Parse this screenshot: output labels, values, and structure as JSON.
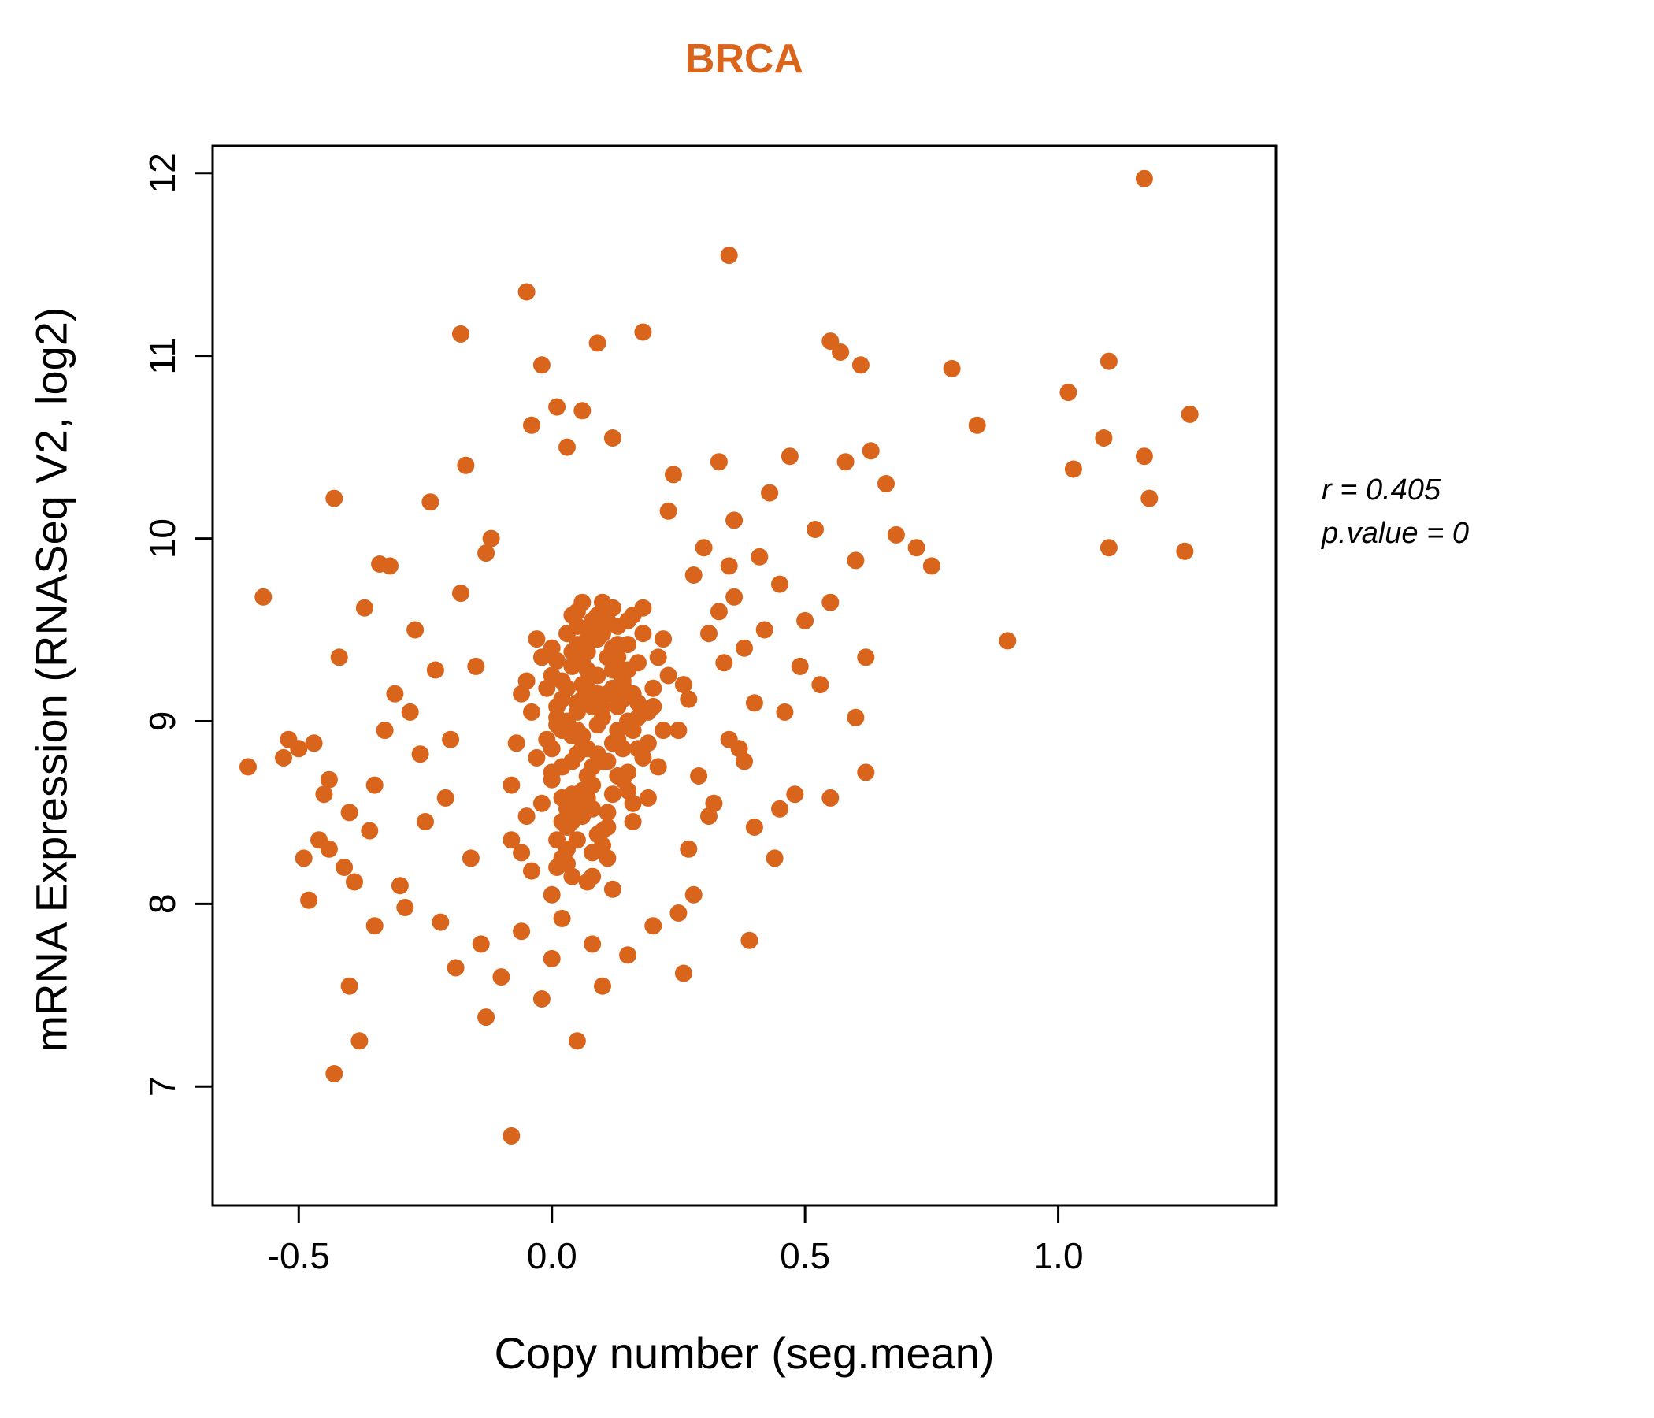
{
  "title": "BRCA",
  "colors": {
    "accent": "#D9641C",
    "point": "#D9641C",
    "axis": "#000000"
  },
  "annotation": {
    "line1": "r = 0.405",
    "line2": "p.value = 0"
  },
  "chart_data": {
    "type": "scatter",
    "title": "BRCA",
    "xlabel": "Copy number (seg.mean)",
    "ylabel": "mRNA Expression (RNASeq V2, log2)",
    "xlim": [
      -0.67,
      1.43
    ],
    "ylim": [
      6.35,
      12.15
    ],
    "xticks": [
      -0.5,
      0.0,
      0.5,
      1.0
    ],
    "xtick_labels": [
      "-0.5",
      "0.0",
      "0.5",
      "1.0"
    ],
    "yticks": [
      7,
      8,
      9,
      10,
      11,
      12
    ],
    "ytick_labels": [
      "7",
      "8",
      "9",
      "10",
      "11",
      "12"
    ],
    "grid": false,
    "legend": null,
    "annotations": [
      "r = 0.405",
      "p.value = 0"
    ],
    "point_color": "#D9641C",
    "points": [
      [
        0.02,
        8.95
      ],
      [
        0.05,
        9.1
      ],
      [
        -0.03,
        8.8
      ],
      [
        0.08,
        9.25
      ],
      [
        0.12,
        8.6
      ],
      [
        0.0,
        9.4
      ],
      [
        0.04,
        8.45
      ],
      [
        0.1,
        9.55
      ],
      [
        0.15,
        9.0
      ],
      [
        0.07,
        8.7
      ],
      [
        -0.06,
        9.15
      ],
      [
        0.03,
        8.3
      ],
      [
        0.11,
        9.35
      ],
      [
        0.06,
        8.85
      ],
      [
        0.14,
        9.2
      ],
      [
        -0.02,
        8.55
      ],
      [
        0.09,
        9.45
      ],
      [
        0.01,
        8.2
      ],
      [
        0.13,
        8.9
      ],
      [
        0.05,
        9.6
      ],
      [
        0.17,
        9.1
      ],
      [
        -0.08,
        8.65
      ],
      [
        0.04,
        9.3
      ],
      [
        0.1,
        8.4
      ],
      [
        0.07,
        9.5
      ],
      [
        0.02,
        8.75
      ],
      [
        0.16,
        8.95
      ],
      [
        0.12,
        9.4
      ],
      [
        -0.04,
        9.05
      ],
      [
        0.08,
        8.15
      ],
      [
        0.06,
        9.65
      ],
      [
        0.18,
        8.8
      ],
      [
        0.03,
        9.0
      ],
      [
        0.11,
        8.5
      ],
      [
        0.0,
        9.25
      ],
      [
        0.15,
        9.55
      ],
      [
        0.05,
        8.35
      ],
      [
        0.09,
        9.15
      ],
      [
        0.13,
        8.7
      ],
      [
        -0.01,
        8.9
      ],
      [
        0.07,
        9.38
      ],
      [
        0.19,
        9.05
      ],
      [
        0.04,
        8.6
      ],
      [
        0.1,
        9.48
      ],
      [
        0.02,
        8.25
      ],
      [
        0.14,
        8.85
      ],
      [
        0.06,
        9.2
      ],
      [
        0.12,
        9.62
      ],
      [
        -0.05,
        8.48
      ],
      [
        0.08,
        9.08
      ],
      [
        0.16,
        8.55
      ],
      [
        0.01,
        9.33
      ],
      [
        0.11,
        8.78
      ],
      [
        0.05,
        9.52
      ],
      [
        0.2,
        9.18
      ],
      [
        0.03,
        8.42
      ],
      [
        0.09,
        8.98
      ],
      [
        0.15,
        9.28
      ],
      [
        -0.07,
        8.88
      ],
      [
        0.07,
        8.12
      ],
      [
        0.13,
        9.42
      ],
      [
        0.0,
        8.68
      ],
      [
        0.17,
        9.02
      ],
      [
        0.04,
        9.58
      ],
      [
        0.1,
        8.32
      ],
      [
        0.06,
        8.92
      ],
      [
        0.21,
        9.35
      ],
      [
        0.02,
        9.12
      ],
      [
        0.08,
        8.52
      ],
      [
        0.14,
        9.22
      ],
      [
        -0.03,
        9.45
      ],
      [
        0.12,
        8.08
      ],
      [
        0.05,
        8.82
      ],
      [
        0.18,
        9.48
      ],
      [
        0.01,
        9.02
      ],
      [
        0.09,
        8.38
      ],
      [
        0.15,
        8.72
      ],
      [
        0.07,
        9.28
      ],
      [
        0.22,
        8.95
      ],
      [
        0.03,
        9.18
      ],
      [
        0.11,
        9.55
      ],
      [
        -0.06,
        8.28
      ],
      [
        0.06,
        8.62
      ],
      [
        0.13,
        9.08
      ],
      [
        0.0,
        8.85
      ],
      [
        0.16,
        8.45
      ],
      [
        0.04,
        9.38
      ],
      [
        0.1,
        9.65
      ],
      [
        0.08,
        8.75
      ],
      [
        0.19,
        8.58
      ],
      [
        0.02,
        9.22
      ],
      [
        0.12,
        8.88
      ],
      [
        -0.04,
        8.18
      ],
      [
        0.07,
        9.45
      ],
      [
        0.14,
        9.12
      ],
      [
        0.05,
        8.55
      ],
      [
        0.23,
        9.25
      ],
      [
        0.01,
        8.98
      ],
      [
        0.09,
        9.58
      ],
      [
        0.17,
        8.85
      ],
      [
        0.03,
        8.22
      ],
      [
        0.11,
        9.15
      ],
      [
        0.06,
        8.48
      ],
      [
        0.13,
        9.52
      ],
      [
        -0.02,
        9.35
      ],
      [
        0.08,
        8.65
      ],
      [
        0.2,
        9.08
      ],
      [
        0.04,
        8.92
      ],
      [
        0.15,
        9.42
      ],
      [
        0.0,
        8.05
      ],
      [
        0.1,
        8.78
      ],
      [
        0.07,
        9.18
      ],
      [
        0.18,
        9.62
      ],
      [
        0.02,
        8.58
      ],
      [
        0.12,
        9.28
      ],
      [
        0.05,
        9.05
      ],
      [
        -0.08,
        8.35
      ],
      [
        0.09,
        8.82
      ],
      [
        0.16,
        9.15
      ],
      [
        0.03,
        9.48
      ],
      [
        0.11,
        8.25
      ],
      [
        0.06,
        9.32
      ],
      [
        0.14,
        8.68
      ],
      [
        0.01,
        9.08
      ],
      [
        0.21,
        8.75
      ],
      [
        0.08,
        9.55
      ],
      [
        0.04,
        8.15
      ],
      [
        0.13,
        8.95
      ],
      [
        -0.05,
        9.22
      ],
      [
        0.07,
        8.85
      ],
      [
        0.17,
        9.32
      ],
      [
        0.1,
        9.02
      ],
      [
        0.02,
        8.45
      ],
      [
        0.15,
        8.62
      ],
      [
        0.05,
        9.42
      ],
      [
        0.12,
        9.18
      ],
      [
        0.0,
        8.72
      ],
      [
        0.09,
        9.25
      ],
      [
        0.19,
        8.88
      ],
      [
        0.03,
        8.52
      ],
      [
        0.06,
        9.12
      ],
      [
        0.11,
        8.42
      ],
      [
        0.16,
        9.58
      ],
      [
        -0.01,
        9.18
      ],
      [
        0.08,
        8.28
      ],
      [
        0.13,
        9.35
      ],
      [
        0.04,
        8.78
      ],
      [
        0.1,
        9.08
      ],
      [
        0.07,
        8.58
      ],
      [
        0.22,
        9.45
      ],
      [
        0.01,
        8.35
      ],
      [
        0.14,
        9.22
      ],
      [
        0.05,
        8.95
      ],
      [
        0.02,
        7.92
      ],
      [
        0.2,
        7.88
      ],
      [
        0.1,
        7.55
      ],
      [
        0.15,
        7.72
      ],
      [
        -0.06,
        7.85
      ],
      [
        0.08,
        7.78
      ],
      [
        0.0,
        7.7
      ],
      [
        -0.1,
        7.6
      ],
      [
        -0.02,
        7.48
      ],
      [
        -0.13,
        7.38
      ],
      [
        0.05,
        7.25
      ],
      [
        -0.08,
        6.73
      ],
      [
        -0.2,
        8.9
      ],
      [
        -0.25,
        8.45
      ],
      [
        -0.15,
        9.3
      ],
      [
        -0.3,
        8.1
      ],
      [
        -0.18,
        9.7
      ],
      [
        -0.22,
        7.9
      ],
      [
        -0.28,
        9.05
      ],
      [
        -0.12,
        10.0
      ],
      [
        -0.35,
        8.65
      ],
      [
        -0.16,
        8.25
      ],
      [
        0.28,
        9.8
      ],
      [
        0.32,
        8.55
      ],
      [
        0.26,
        9.2
      ],
      [
        0.35,
        8.9
      ],
      [
        0.3,
        9.95
      ],
      [
        0.38,
        9.4
      ],
      [
        0.27,
        8.3
      ],
      [
        0.33,
        9.6
      ],
      [
        0.4,
        9.1
      ],
      [
        0.29,
        8.7
      ],
      [
        0.36,
        10.1
      ],
      [
        0.42,
        9.5
      ],
      [
        0.25,
        7.95
      ],
      [
        0.31,
        8.48
      ],
      [
        0.45,
        9.75
      ],
      [
        0.37,
        8.85
      ],
      [
        0.43,
        10.25
      ],
      [
        0.34,
        9.32
      ],
      [
        0.48,
        8.6
      ],
      [
        0.41,
        9.9
      ],
      [
        -0.24,
        10.2
      ],
      [
        -0.19,
        7.65
      ],
      [
        0.24,
        10.35
      ],
      [
        0.39,
        7.8
      ],
      [
        -0.27,
        9.5
      ],
      [
        -0.14,
        7.78
      ],
      [
        0.46,
        9.05
      ],
      [
        0.23,
        10.15
      ],
      [
        -0.32,
        9.85
      ],
      [
        -0.21,
        8.58
      ],
      [
        0.44,
        8.25
      ],
      [
        0.26,
        7.62
      ],
      [
        -0.17,
        10.4
      ],
      [
        0.47,
        10.45
      ],
      [
        0.36,
        9.68
      ],
      [
        -0.29,
        7.98
      ],
      [
        0.25,
        8.95
      ],
      [
        0.33,
        10.42
      ],
      [
        -0.23,
        9.28
      ],
      [
        0.49,
        9.3
      ],
      [
        0.28,
        8.05
      ],
      [
        -0.26,
        8.82
      ],
      [
        0.31,
        9.48
      ],
      [
        0.4,
        8.42
      ],
      [
        -0.13,
        9.92
      ],
      [
        0.27,
        9.12
      ],
      [
        0.38,
        8.78
      ],
      [
        -0.31,
        9.15
      ],
      [
        0.45,
        8.52
      ],
      [
        0.35,
        9.85
      ],
      [
        -0.57,
        9.68
      ],
      [
        -0.6,
        8.75
      ],
      [
        -0.52,
        8.9
      ],
      [
        -0.5,
        8.85
      ],
      [
        -0.48,
        8.02
      ],
      [
        -0.45,
        8.6
      ],
      [
        -0.43,
        10.22
      ],
      [
        -0.43,
        7.07
      ],
      [
        -0.46,
        8.35
      ],
      [
        -0.41,
        8.2
      ],
      [
        -0.44,
        8.68
      ],
      [
        -0.4,
        7.55
      ],
      [
        -0.39,
        8.12
      ],
      [
        -0.47,
        8.88
      ],
      [
        -0.42,
        9.35
      ],
      [
        -0.38,
        7.25
      ],
      [
        -0.36,
        8.4
      ],
      [
        -0.34,
        9.86
      ],
      [
        -0.37,
        9.62
      ],
      [
        -0.33,
        8.95
      ],
      [
        -0.49,
        8.25
      ],
      [
        -0.53,
        8.8
      ],
      [
        -0.35,
        7.88
      ],
      [
        -0.44,
        8.3
      ],
      [
        -0.4,
        8.5
      ],
      [
        1.17,
        11.97
      ],
      [
        0.35,
        11.55
      ],
      [
        -0.05,
        11.35
      ],
      [
        -0.18,
        11.12
      ],
      [
        0.18,
        11.13
      ],
      [
        0.09,
        11.07
      ],
      [
        -0.02,
        10.95
      ],
      [
        0.01,
        10.72
      ],
      [
        0.06,
        10.7
      ],
      [
        -0.04,
        10.62
      ],
      [
        0.03,
        10.5
      ],
      [
        0.12,
        10.55
      ],
      [
        0.55,
        11.08
      ],
      [
        0.57,
        11.02
      ],
      [
        0.61,
        10.95
      ],
      [
        0.79,
        10.93
      ],
      [
        0.84,
        10.62
      ],
      [
        1.02,
        10.8
      ],
      [
        1.1,
        10.97
      ],
      [
        1.26,
        10.68
      ],
      [
        1.09,
        10.55
      ],
      [
        1.17,
        10.45
      ],
      [
        1.03,
        10.38
      ],
      [
        1.18,
        10.22
      ],
      [
        1.25,
        9.93
      ],
      [
        1.1,
        9.95
      ],
      [
        0.9,
        9.44
      ],
      [
        0.63,
        10.48
      ],
      [
        0.58,
        10.42
      ],
      [
        0.66,
        10.3
      ],
      [
        0.52,
        10.05
      ],
      [
        0.6,
        9.88
      ],
      [
        0.68,
        10.02
      ],
      [
        0.72,
        9.95
      ],
      [
        0.75,
        9.85
      ],
      [
        0.55,
        9.65
      ],
      [
        0.62,
        9.35
      ],
      [
        0.6,
        9.02
      ],
      [
        0.62,
        8.72
      ],
      [
        0.55,
        8.58
      ],
      [
        0.5,
        9.55
      ],
      [
        0.53,
        9.2
      ]
    ]
  }
}
